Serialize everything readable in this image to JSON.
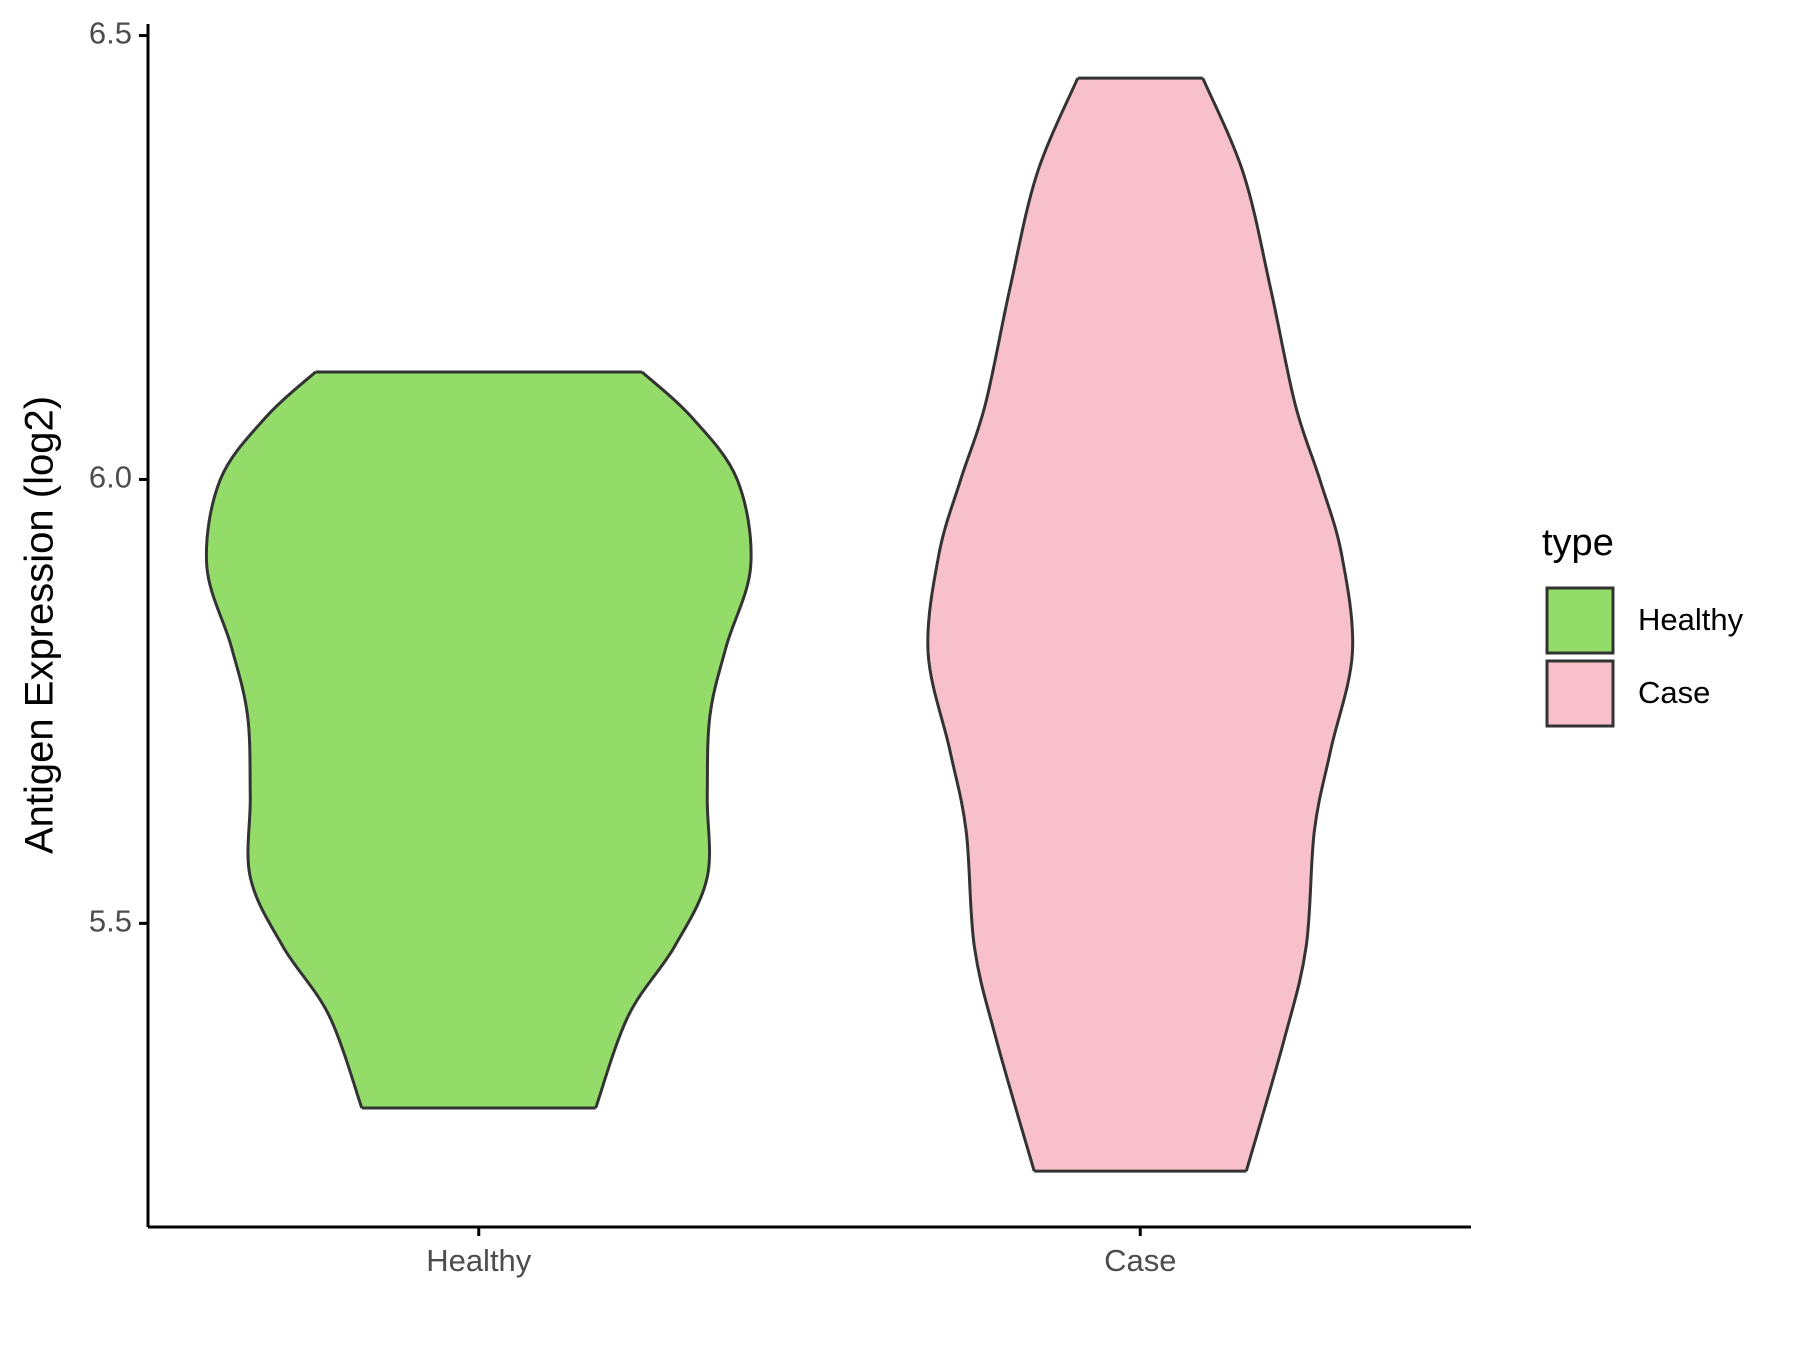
{
  "chart_data": {
    "type": "violin",
    "ylabel": "Antigen Expression (log2)",
    "categories": [
      "Healthy",
      "Case"
    ],
    "legend_title": "type",
    "legend_position": "right",
    "ylim": [
      5.158,
      6.513
    ],
    "yticks": [
      5.5,
      {
        "value": 6.0,
        "label": "6.0"
      },
      6.5
    ],
    "series": [
      {
        "name": "Healthy",
        "color": "#93dc6a",
        "y": [
          6.121,
          6.071,
          6.0,
          5.903,
          5.812,
          5.734,
          5.643,
          5.552,
          5.474,
          5.396,
          5.292
        ],
        "density": [
          0.6,
          0.78,
          0.95,
          1.0,
          0.91,
          0.85,
          0.84,
          0.84,
          0.72,
          0.55,
          0.43
        ]
      },
      {
        "name": "Case",
        "color": "#f7c0cb",
        "y": [
          6.452,
          6.344,
          6.214,
          6.084,
          6.0,
          5.916,
          5.805,
          5.695,
          5.604,
          5.474,
          5.37,
          5.221
        ],
        "density": [
          0.23,
          0.38,
          0.48,
          0.57,
          0.66,
          0.74,
          0.78,
          0.7,
          0.64,
          0.61,
          0.53,
          0.39
        ]
      }
    ]
  }
}
